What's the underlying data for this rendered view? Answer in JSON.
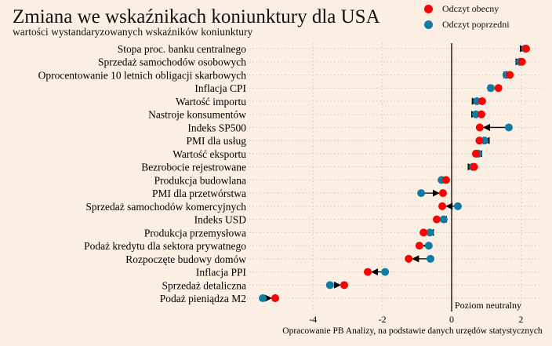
{
  "chart_data": {
    "type": "dumbbell",
    "title": "Zmiana we wskaźnikach koniunktury dla USA",
    "subtitle": "wartości wystandaryzowanych wskaźników koniunktury",
    "legend": {
      "position": "top-right",
      "current": "Odczyt obecny",
      "previous": "Odczyt poprzedni"
    },
    "colors": {
      "current": "#ff0000",
      "previous": "#0e7ca3",
      "background": "#fbeee2"
    },
    "xlim": [
      -5.6,
      2.5
    ],
    "xticks": [
      -4,
      -2,
      0,
      2
    ],
    "grid": true,
    "zero_line_label": "Poziom neutralny",
    "source": "Opracowanie PB Analizy, na podstawie danych urzędów statystycznych",
    "categories": [
      "Stopa proc. banku centralnego",
      "Sprzedaż samochodów osobowych",
      "Oprocentowanie 10 letnich obligacji skarbowych",
      "Inflacja CPI",
      "Wartość importu",
      "Nastroje konsumentów",
      "Indeks SP500",
      "PMI dla usług",
      "Wartość eksportu",
      "Bezrobocie rejestrowane",
      "Produkcja budowlana",
      "PMI dla przetwórstwa",
      "Sprzedaż samochodów komercyjnych",
      "Indeks USD",
      "Produkcja przemysłowa",
      "Podaż kredytu dla sektora prywatnego",
      "Rozpoczęte budowy domów",
      "Inflacja PPI",
      "Sprzedaż detaliczna",
      "Podaż pieniądza M2"
    ],
    "series": [
      {
        "name": "Odczyt obecny",
        "values": [
          2.15,
          2.03,
          1.68,
          1.35,
          0.88,
          0.86,
          0.81,
          0.8,
          0.7,
          0.65,
          -0.16,
          -0.25,
          -0.27,
          -0.43,
          -0.81,
          -0.93,
          -1.24,
          -2.42,
          -3.1,
          -5.09
        ]
      },
      {
        "name": "Odczyt poprzedni",
        "values": [
          2.12,
          1.97,
          1.58,
          1.13,
          0.73,
          0.7,
          1.65,
          0.95,
          0.77,
          0.61,
          -0.29,
          -0.88,
          0.18,
          -0.23,
          -0.63,
          -0.66,
          -0.61,
          -1.92,
          -3.51,
          -5.45
        ]
      }
    ]
  }
}
